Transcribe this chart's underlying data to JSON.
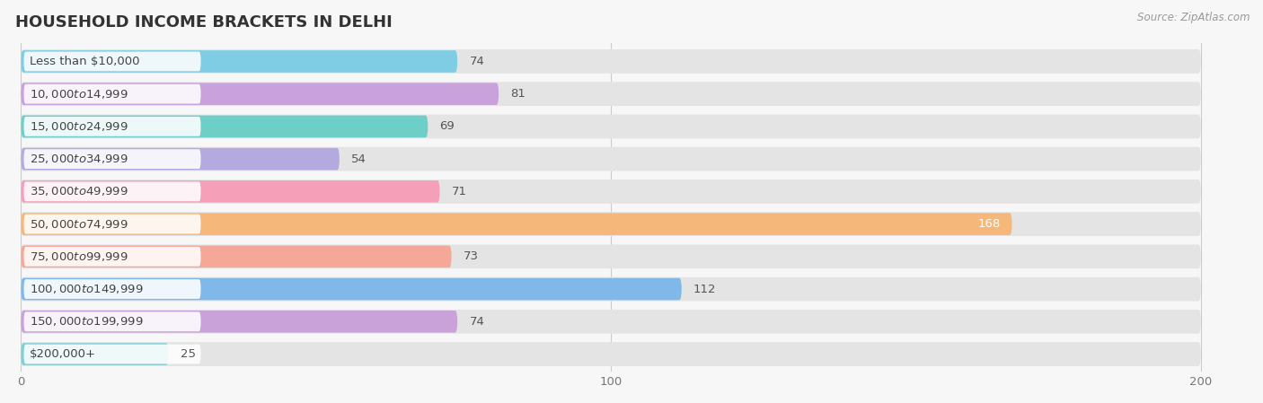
{
  "title": "Household Income Brackets in Delhi",
  "source": "Source: ZipAtlas.com",
  "categories": [
    "Less than $10,000",
    "$10,000 to $14,999",
    "$15,000 to $24,999",
    "$25,000 to $34,999",
    "$35,000 to $49,999",
    "$50,000 to $74,999",
    "$75,000 to $99,999",
    "$100,000 to $149,999",
    "$150,000 to $199,999",
    "$200,000+"
  ],
  "values": [
    74,
    81,
    69,
    54,
    71,
    168,
    73,
    112,
    74,
    25
  ],
  "bar_colors": [
    "#7ecde4",
    "#c9a2dc",
    "#6dcfc8",
    "#b4aae0",
    "#f5a0b8",
    "#f5b87a",
    "#f5a898",
    "#80b8ea",
    "#c8a2d8",
    "#80cfd4"
  ],
  "value_label_color_inside": "#ffffff",
  "value_label_color_outside": "#555555",
  "inside_bar_threshold": 168,
  "xlim_max": 200,
  "xticks": [
    0,
    100,
    200
  ],
  "background_color": "#f7f7f7",
  "bar_bg_color": "#e4e4e4",
  "row_bg_color": "#f7f7f7",
  "title_fontsize": 13,
  "label_fontsize": 9.5,
  "value_fontsize": 9.5,
  "tick_fontsize": 9.5
}
